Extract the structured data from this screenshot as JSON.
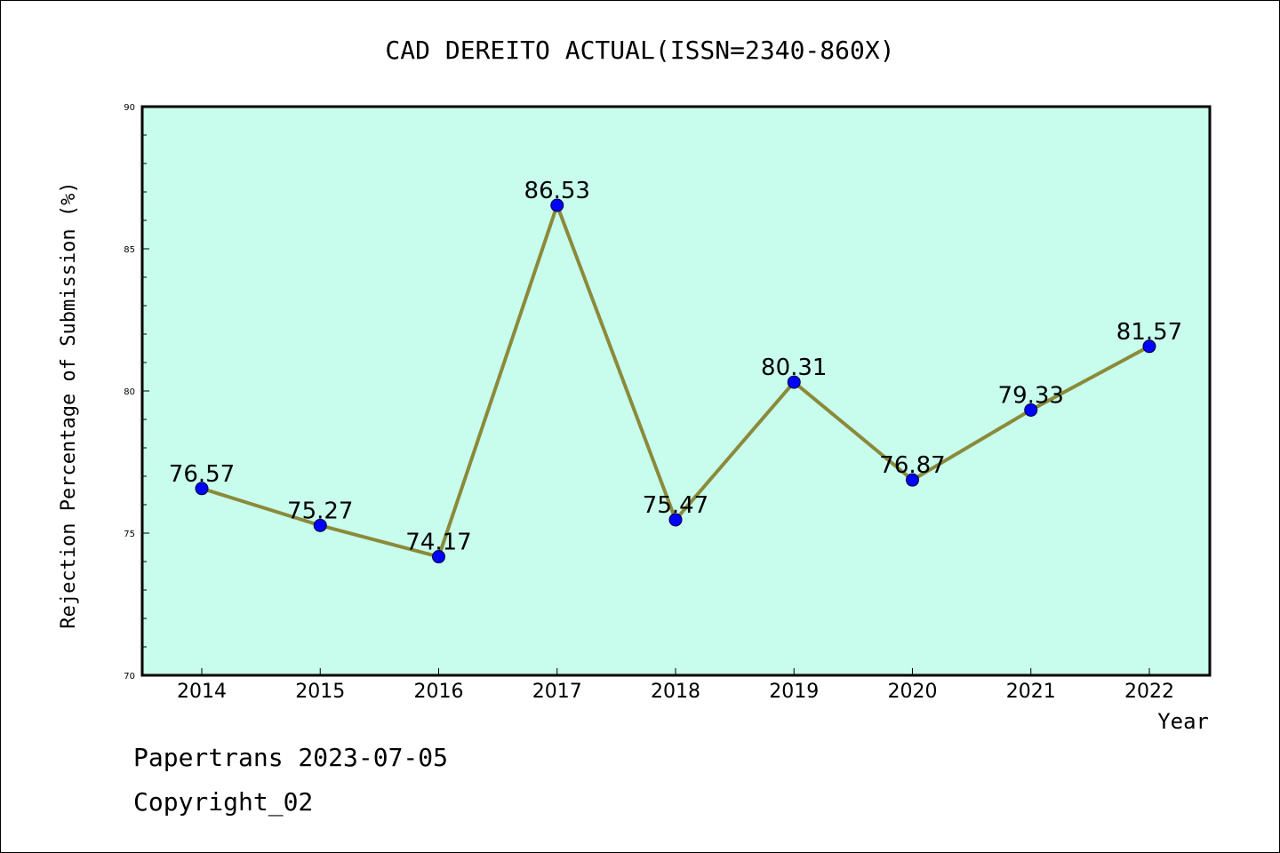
{
  "chart_data": {
    "type": "line",
    "title": "CAD DEREITO ACTUAL(ISSN=2340-860X)",
    "xlabel": "Year",
    "ylabel": "Rejection Percentage of Submission (%)",
    "categories": [
      "2014",
      "2015",
      "2016",
      "2017",
      "2018",
      "2019",
      "2020",
      "2021",
      "2022"
    ],
    "values": [
      76.57,
      75.27,
      74.17,
      86.53,
      75.47,
      80.31,
      76.87,
      79.33,
      81.57
    ],
    "value_labels": [
      "76.57",
      "75.27",
      "74.17",
      "86.53",
      "75.47",
      "80.31",
      "76.87",
      "79.33",
      "81.57"
    ],
    "ylim": [
      70,
      90
    ],
    "yticks": [
      "70",
      "75",
      "80",
      "85",
      "90"
    ],
    "line_color": "#8b8a3a",
    "marker_color": "#0000ff",
    "plot_background": "#c8fced"
  },
  "footer": {
    "source": "Papertrans 2023-07-05",
    "copyright": "Copyright_02"
  }
}
